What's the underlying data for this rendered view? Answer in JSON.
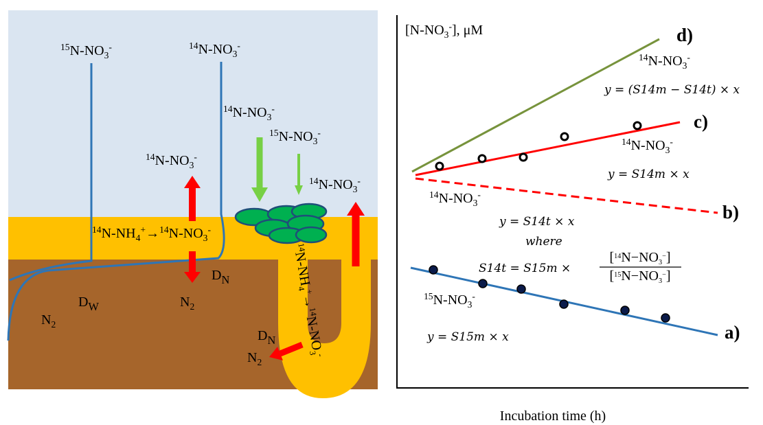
{
  "left_panel": {
    "labels": [
      {
        "mass": "15",
        "element": "N-NO",
        "sub": "3",
        "charge": "-"
      },
      {
        "mass": "14",
        "element": "N-NO",
        "sub": "3",
        "charge": "-"
      },
      {
        "mass": "14",
        "element": "N-NO",
        "sub": "3",
        "charge": "-"
      },
      {
        "mass": "15",
        "element": "N-NO",
        "sub": "3",
        "charge": "-"
      },
      {
        "mass": "14",
        "element": "N-NO",
        "sub": "3",
        "charge": "-"
      },
      {
        "mass": "14",
        "element": "N-NO",
        "sub": "3",
        "charge": "-"
      },
      {
        "element": "D",
        "sub": "N"
      },
      {
        "element": "D",
        "sub": "W"
      },
      {
        "element": "N",
        "sub": "2"
      },
      {
        "element": "N",
        "sub": "2"
      },
      {
        "element": "D",
        "sub": "N"
      },
      {
        "element": "N",
        "sub": "2"
      }
    ],
    "reaction": {
      "from": {
        "mass": "14",
        "element": "N-NH",
        "sub": "4",
        "charge": "+"
      },
      "arrow": "→",
      "to": {
        "mass": "14",
        "element": "N-NO",
        "sub": "3",
        "charge": "-"
      }
    },
    "burrow_reaction": {
      "from": {
        "mass": "14",
        "element": "N-NH",
        "sub": "4",
        "charge": "+"
      },
      "arrow": "→",
      "to": {
        "mass": "14",
        "element": "N-NO",
        "sub": "3",
        "charge": "-"
      }
    }
  },
  "right_panel": {
    "y_label": {
      "open": "[",
      "element": "N-NO",
      "sub": "3",
      "charge": "-",
      "close": "], μM"
    },
    "x_label": "Incubation time (h)",
    "lines": [
      {
        "tag": "d)",
        "species": {
          "mass": "14",
          "element": "N-NO",
          "sub": "3",
          "charge": "-"
        },
        "formula": "y = (S14m − S14t) × x"
      },
      {
        "tag": "c)",
        "species": {
          "mass": "14",
          "element": "N-NO",
          "sub": "3",
          "charge": "-"
        },
        "formula": "y = S14m × x"
      },
      {
        "tag": "b)",
        "species": {
          "mass": "14",
          "element": "N-NO",
          "sub": "3",
          "charge": "-"
        },
        "formula": "y = S14t × x"
      },
      {
        "tag": "a)",
        "species": {
          "mass": "15",
          "element": "N-NO",
          "sub": "3",
          "charge": "-"
        },
        "formula": "y = S15m × x"
      }
    ],
    "where": "where",
    "equation": {
      "lhs": "S14t = S15m ×",
      "numerator": {
        "open": "[",
        "mass": "14",
        "element": "N−NO",
        "sub": "3",
        "charge": "−",
        "close": "]"
      },
      "denominator": {
        "open": "[",
        "mass": "15",
        "element": "N−NO",
        "sub": "3",
        "charge": "−",
        "close": "]"
      }
    }
  }
}
